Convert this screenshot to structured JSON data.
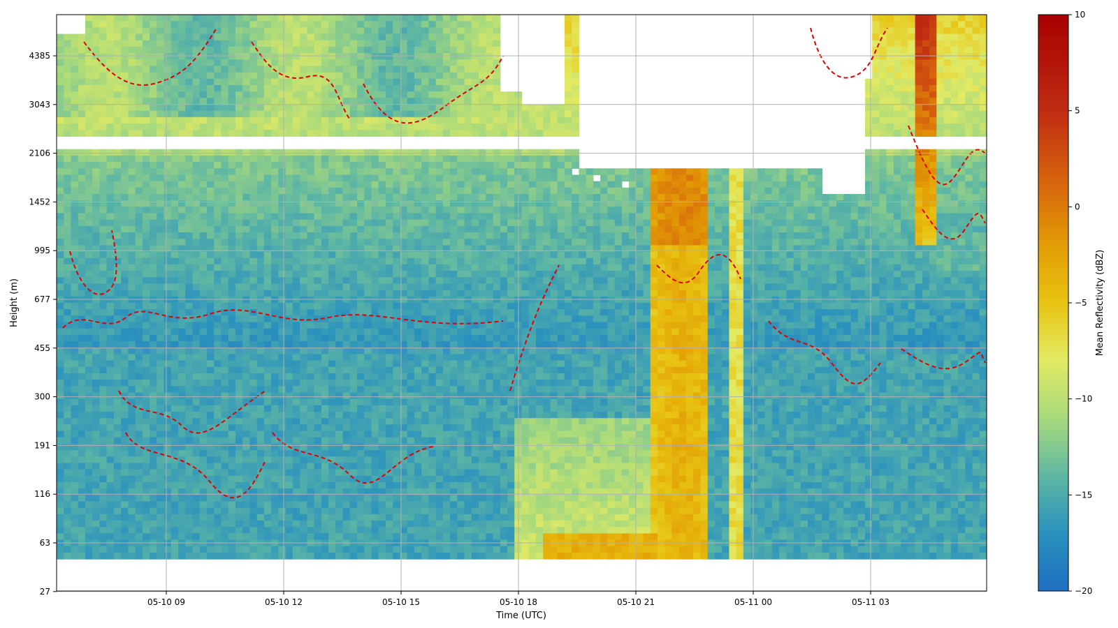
{
  "chart_data": {
    "type": "heatmap",
    "xlabel": "Time (UTC)",
    "ylabel": "Height (m)",
    "x_ticks": [
      "05-10 09",
      "05-10 12",
      "05-10 15",
      "05-10 18",
      "05-10 21",
      "05-11 00",
      "05-11 03"
    ],
    "x_range_hours_from_0510_00": [
      6.2,
      29.95
    ],
    "y_ticks": [
      "27",
      "63",
      "116",
      "191",
      "300",
      "455",
      "677",
      "995",
      "1452",
      "2106",
      "3043",
      "4385"
    ],
    "y_range_m": [
      27,
      5600
    ],
    "y_scale": "log-spaced height bins",
    "grid": true,
    "colorbar": {
      "label": "Mean Reflectivity (dBZ)",
      "min": -20,
      "max": 10,
      "ticks": [
        "10",
        "5",
        "0",
        "−5",
        "−10",
        "−15",
        "−20"
      ],
      "colormap_stops": [
        {
          "v": -20,
          "c": "#1f6fc0"
        },
        {
          "v": -17,
          "c": "#2a91be"
        },
        {
          "v": -14,
          "c": "#5fb7a3"
        },
        {
          "v": -11,
          "c": "#a7d97d"
        },
        {
          "v": -8,
          "c": "#e2ea63"
        },
        {
          "v": -5,
          "c": "#e8c312"
        },
        {
          "v": -2,
          "c": "#e29c05"
        },
        {
          "v": 1,
          "c": "#d8690c"
        },
        {
          "v": 5,
          "c": "#c02b13"
        },
        {
          "v": 10,
          "c": "#a60000"
        }
      ]
    },
    "contour": {
      "color": "#e00000",
      "style": "dashed"
    },
    "no_data_color": "#ffffff"
  }
}
